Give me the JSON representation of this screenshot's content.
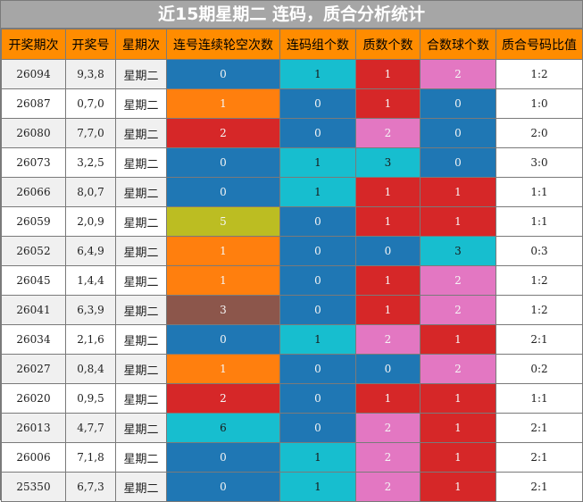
{
  "title": "近15期星期二 连码，质合分析统计",
  "headers": [
    "开奖期次",
    "开奖号",
    "星期次",
    "连号连续轮空次数",
    "连码组个数",
    "质数个数",
    "合数球个数",
    "质合号码比值"
  ],
  "colors": {
    "blue": "#1f77b4",
    "orange": "#ff7f0e",
    "red": "#d62728",
    "pink": "#e377c2",
    "cyan": "#17becf",
    "olive": "#bcbd22",
    "brown": "#8c564b",
    "header_bg": "#ff8c00",
    "title_bg": "#a6a6a6"
  },
  "rows": [
    {
      "period": "26094",
      "numbers": "9,3,8",
      "weekday": "星期二",
      "miss": "0",
      "miss_color": "blue",
      "groups": "1",
      "groups_color": "cyan",
      "prime": "1",
      "prime_color": "red",
      "composite": "2",
      "composite_color": "pink",
      "ratio": "1:2"
    },
    {
      "period": "26087",
      "numbers": "0,7,0",
      "weekday": "星期二",
      "miss": "1",
      "miss_color": "orange",
      "groups": "0",
      "groups_color": "blue",
      "prime": "1",
      "prime_color": "red",
      "composite": "0",
      "composite_color": "blue",
      "ratio": "1:0"
    },
    {
      "period": "26080",
      "numbers": "7,7,0",
      "weekday": "星期二",
      "miss": "2",
      "miss_color": "red",
      "groups": "0",
      "groups_color": "blue",
      "prime": "2",
      "prime_color": "pink",
      "composite": "0",
      "composite_color": "blue",
      "ratio": "2:0"
    },
    {
      "period": "26073",
      "numbers": "3,2,5",
      "weekday": "星期二",
      "miss": "0",
      "miss_color": "blue",
      "groups": "1",
      "groups_color": "cyan",
      "prime": "3",
      "prime_color": "cyan",
      "composite": "0",
      "composite_color": "blue",
      "ratio": "3:0"
    },
    {
      "period": "26066",
      "numbers": "8,0,7",
      "weekday": "星期二",
      "miss": "0",
      "miss_color": "blue",
      "groups": "1",
      "groups_color": "cyan",
      "prime": "1",
      "prime_color": "red",
      "composite": "1",
      "composite_color": "red",
      "ratio": "1:1"
    },
    {
      "period": "26059",
      "numbers": "2,0,9",
      "weekday": "星期二",
      "miss": "5",
      "miss_color": "olive",
      "groups": "0",
      "groups_color": "blue",
      "prime": "1",
      "prime_color": "red",
      "composite": "1",
      "composite_color": "red",
      "ratio": "1:1"
    },
    {
      "period": "26052",
      "numbers": "6,4,9",
      "weekday": "星期二",
      "miss": "1",
      "miss_color": "orange",
      "groups": "0",
      "groups_color": "blue",
      "prime": "0",
      "prime_color": "blue",
      "composite": "3",
      "composite_color": "cyan",
      "ratio": "0:3"
    },
    {
      "period": "26045",
      "numbers": "1,4,4",
      "weekday": "星期二",
      "miss": "1",
      "miss_color": "orange",
      "groups": "0",
      "groups_color": "blue",
      "prime": "1",
      "prime_color": "red",
      "composite": "2",
      "composite_color": "pink",
      "ratio": "1:2"
    },
    {
      "period": "26041",
      "numbers": "6,3,9",
      "weekday": "星期二",
      "miss": "3",
      "miss_color": "brown",
      "groups": "0",
      "groups_color": "blue",
      "prime": "1",
      "prime_color": "red",
      "composite": "2",
      "composite_color": "pink",
      "ratio": "1:2"
    },
    {
      "period": "26034",
      "numbers": "2,1,6",
      "weekday": "星期二",
      "miss": "0",
      "miss_color": "blue",
      "groups": "1",
      "groups_color": "cyan",
      "prime": "2",
      "prime_color": "pink",
      "composite": "1",
      "composite_color": "red",
      "ratio": "2:1"
    },
    {
      "period": "26027",
      "numbers": "0,8,4",
      "weekday": "星期二",
      "miss": "1",
      "miss_color": "orange",
      "groups": "0",
      "groups_color": "blue",
      "prime": "0",
      "prime_color": "blue",
      "composite": "2",
      "composite_color": "pink",
      "ratio": "0:2"
    },
    {
      "period": "26020",
      "numbers": "0,9,5",
      "weekday": "星期二",
      "miss": "2",
      "miss_color": "red",
      "groups": "0",
      "groups_color": "blue",
      "prime": "1",
      "prime_color": "red",
      "composite": "1",
      "composite_color": "red",
      "ratio": "1:1"
    },
    {
      "period": "26013",
      "numbers": "4,7,7",
      "weekday": "星期二",
      "miss": "6",
      "miss_color": "cyan",
      "groups": "0",
      "groups_color": "blue",
      "prime": "2",
      "prime_color": "pink",
      "composite": "1",
      "composite_color": "red",
      "ratio": "2:1"
    },
    {
      "period": "26006",
      "numbers": "7,1,8",
      "weekday": "星期二",
      "miss": "0",
      "miss_color": "blue",
      "groups": "1",
      "groups_color": "cyan",
      "prime": "2",
      "prime_color": "pink",
      "composite": "1",
      "composite_color": "red",
      "ratio": "2:1"
    },
    {
      "period": "25350",
      "numbers": "6,7,3",
      "weekday": "星期二",
      "miss": "0",
      "miss_color": "blue",
      "groups": "1",
      "groups_color": "cyan",
      "prime": "2",
      "prime_color": "pink",
      "composite": "1",
      "composite_color": "red",
      "ratio": "2:1"
    }
  ]
}
